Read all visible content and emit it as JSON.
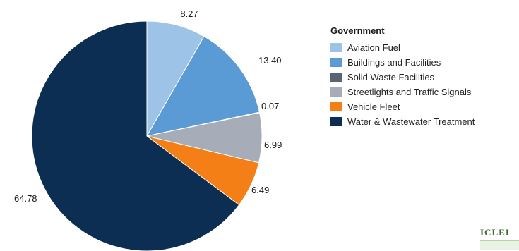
{
  "chart_data": {
    "type": "pie",
    "legend_title": "Government",
    "legend_placement": "right",
    "slices": [
      {
        "name": "Aviation Fuel",
        "value": 8.27,
        "color": "#9dc3e6"
      },
      {
        "name": "Buildings and Facilities",
        "value": 13.4,
        "color": "#5b9bd5"
      },
      {
        "name": "Solid Waste Facilities",
        "value": 0.07,
        "color": "#596577"
      },
      {
        "name": "Streetlights and Traffic Signals",
        "value": 6.99,
        "color": "#a6adb8"
      },
      {
        "name": "Vehicle Fleet",
        "value": 6.49,
        "color": "#f57f17"
      },
      {
        "name": "Water & Wastewater Treatment",
        "value": 64.78,
        "color": "#0c2e52"
      }
    ],
    "labels": [
      "8.27",
      "13.40",
      "0.07",
      "6.99",
      "6.49",
      "64.78"
    ]
  },
  "logo_text": "ICLEI"
}
